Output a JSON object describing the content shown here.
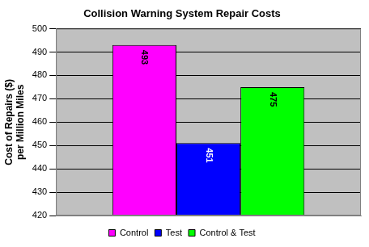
{
  "chart_data": {
    "type": "bar",
    "title": "Collision Warning System Repair Costs",
    "y_label": "Cost of Repairs ($)\nper Million Miles",
    "categories": [
      null
    ],
    "series": [
      {
        "name": "Control",
        "color": "#ff00ff",
        "values": [
          493
        ]
      },
      {
        "name": "Test",
        "color": "#0000ff",
        "values": [
          451
        ]
      },
      {
        "name": "Control & Test",
        "color": "#00ff00",
        "values": [
          475
        ]
      }
    ],
    "ylim": [
      420,
      500
    ],
    "yticks": [
      420,
      430,
      440,
      450,
      460,
      470,
      480,
      490,
      500
    ],
    "grid": true,
    "legend": "bottom",
    "data_labels": true
  }
}
